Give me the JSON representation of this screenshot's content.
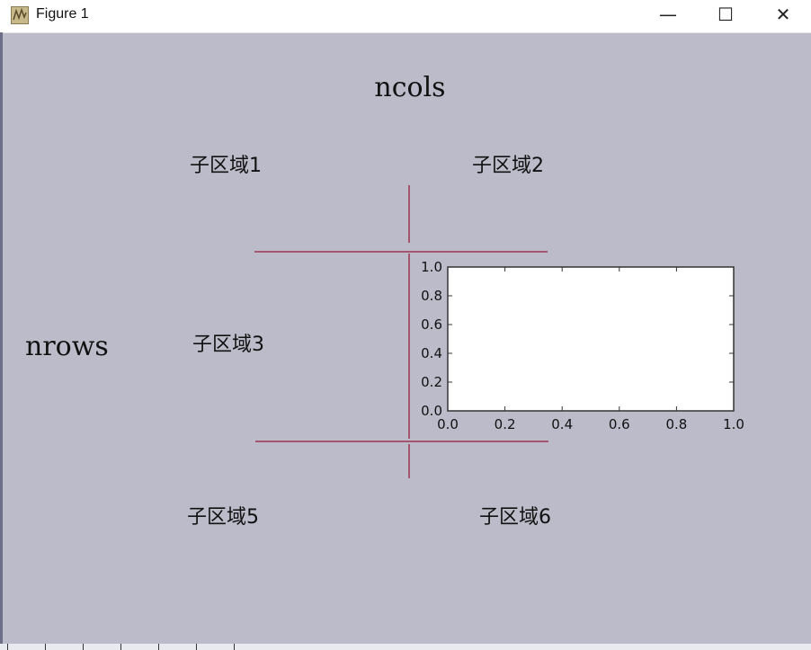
{
  "window": {
    "title": "Figure 1",
    "minimize_glyph": "—",
    "maximize_glyph": "☐",
    "close_glyph": "✕"
  },
  "figure": {
    "ncols_label": "ncols",
    "nrows_label": "nrows",
    "subplot_labels": [
      "子区域1",
      "子区域2",
      "子区域3",
      "子区域5",
      "子区域6"
    ],
    "divider_color": "#a4566e",
    "background_color": "#bcbbc9"
  },
  "chart_data": {
    "type": "line",
    "title": "",
    "xlabel": "",
    "ylabel": "",
    "xlim": [
      0.0,
      1.0
    ],
    "ylim": [
      0.0,
      1.0
    ],
    "x_ticks": [
      "0.0",
      "0.2",
      "0.4",
      "0.6",
      "0.8",
      "1.0"
    ],
    "y_ticks": [
      "0.0",
      "0.2",
      "0.4",
      "0.6",
      "0.8",
      "1.0"
    ],
    "series": [],
    "grid": false
  },
  "toolbar": {
    "button_count": 7
  }
}
